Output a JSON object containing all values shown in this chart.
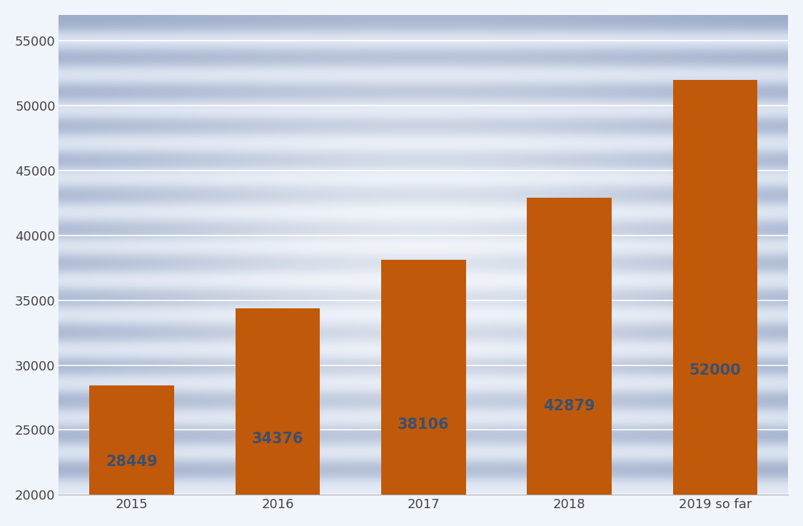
{
  "categories": [
    "2015",
    "2016",
    "2017",
    "2018",
    "2019 so far"
  ],
  "values": [
    28449,
    34376,
    38106,
    42879,
    52000
  ],
  "bar_color": "#C05A0A",
  "label_color": "#3A5070",
  "ylim": [
    20000,
    57000
  ],
  "yticks": [
    20000,
    25000,
    30000,
    35000,
    40000,
    45000,
    50000,
    55000
  ],
  "grid_color": "#ffffff",
  "label_fontsize": 15,
  "tick_fontsize": 13,
  "bar_width": 0.58,
  "label_fontweight": "bold",
  "stripe_blue": "#9aaac8",
  "stripe_light": "#dce8f5",
  "bg_color": "#e8eef8",
  "num_stripes": 28
}
